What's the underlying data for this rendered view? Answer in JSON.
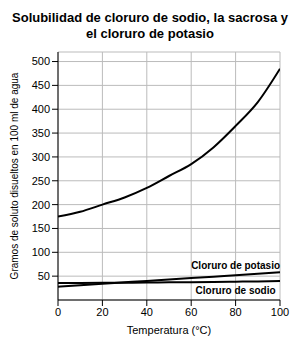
{
  "chart_data": {
    "type": "line",
    "title": "Solubilidad de cloruro de sodio, la sacrosa y el cloruro de potasio",
    "x_label": "Temperatura (°C)",
    "y_label": "Gramos de soluto disueltos en 100 ml de agua",
    "x": [
      0,
      10,
      20,
      30,
      40,
      50,
      60,
      70,
      80,
      90,
      100
    ],
    "series": [
      {
        "color": "#000000",
        "values": [
          175,
          185,
          200,
          215,
          235,
          260,
          285,
          320,
          365,
          415,
          485
        ]
      },
      {
        "name": "Cloruro de potasio",
        "color": "#000000",
        "values": [
          28,
          31,
          34,
          37,
          40,
          43,
          46,
          49,
          52,
          55,
          58
        ]
      },
      {
        "name": "Cloruro de sodio",
        "color": "#000000",
        "values": [
          35.7,
          35.8,
          36,
          36.3,
          36.6,
          37,
          37.3,
          37.8,
          38.4,
          39,
          39.8
        ]
      }
    ],
    "xlim": [
      0,
      100
    ],
    "xticks": [
      0,
      20,
      40,
      60,
      80,
      100
    ],
    "ylim": [
      0,
      520
    ],
    "yticks": [
      50,
      100,
      150,
      200,
      250,
      300,
      350,
      400,
      450,
      500
    ],
    "grid": true
  }
}
